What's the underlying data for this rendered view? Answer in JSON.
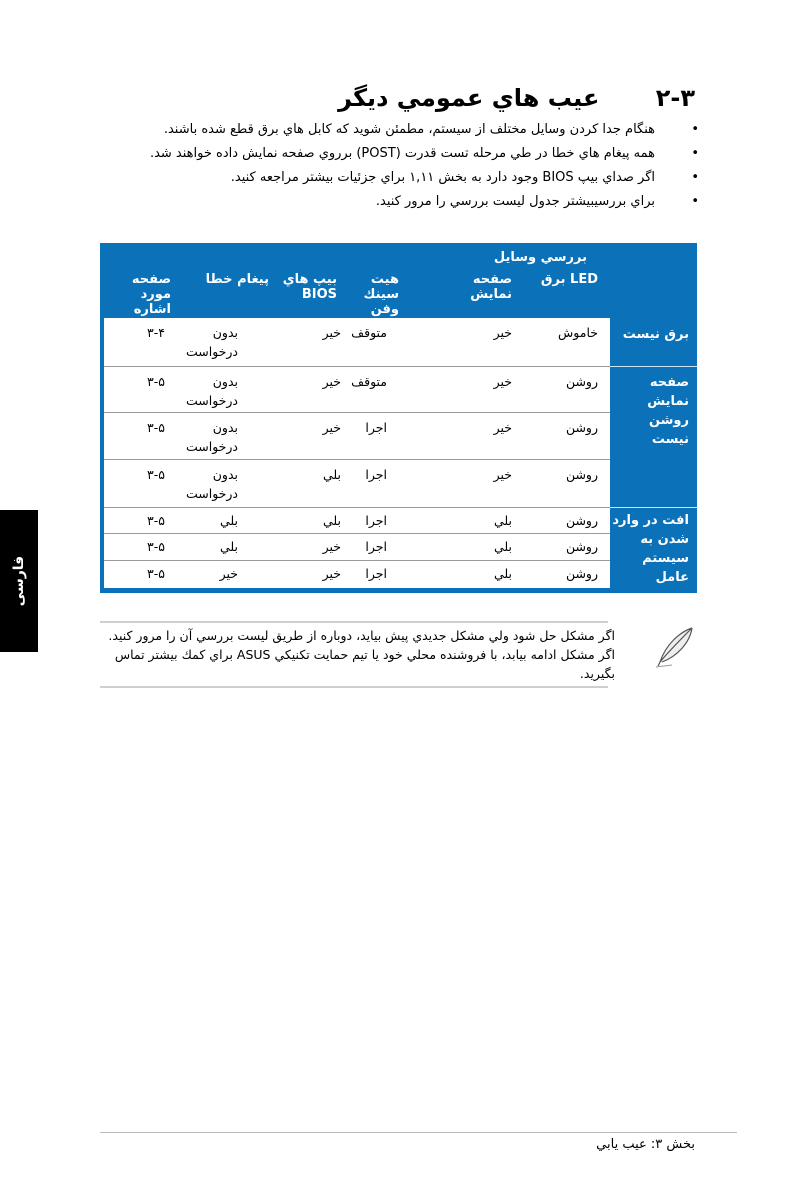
{
  "section": {
    "number": "۲-۳",
    "title": "عيب هاي عمومي ديگر"
  },
  "bullets": [
    "هنگام جدا كردن وسايل مختلف از سيستم، مطمئن شويد كه كابل هاي برق قطع شده باشند.",
    "همه پيغام هاي خطا در طي مرحله تست قدرت (POST) برروي صفحه نمايش داده خواهند شد.",
    "اگر صداي بيپ BIOS وجود دارد به بخش ۱,۱۱ براي جزئيات بيشتر مراجعه كنيد.",
    "براي بررسيبيشتر جدول ليست بررسي را مرور كنيد."
  ],
  "table": {
    "group_header": "بررسي وسايل",
    "headers": [
      "LED برق",
      "صفحه نمايش",
      "هيت سينك وفن",
      "بيپ هاي BIOS",
      "پيغام خطا",
      "صفحه مورد اشاره"
    ],
    "groups": [
      {
        "label": "برق نيست"
      },
      {
        "label": "صفحه نمايش روشن نيست"
      },
      {
        "label": "افت در وارد شدن به سيستم عامل"
      }
    ],
    "rows": [
      [
        "خاموش",
        "خير",
        "متوقف",
        "خير",
        "بدون درخواست",
        "۳-۴"
      ],
      [
        "روشن",
        "خير",
        "متوقف",
        "خير",
        "بدون درخواست",
        "۳-۵"
      ],
      [
        "روشن",
        "خير",
        "اجرا",
        "خير",
        "بدون درخواست",
        "۳-۵"
      ],
      [
        "روشن",
        "خير",
        "اجرا",
        "بلي",
        "بدون درخواست",
        "۳-۵"
      ],
      [
        "روشن",
        "بلي",
        "اجرا",
        "بلي",
        "بلي",
        "۳-۵"
      ],
      [
        "روشن",
        "بلي",
        "اجرا",
        "خير",
        "بلي",
        "۳-۵"
      ],
      [
        "روشن",
        "بلي",
        "اجرا",
        "خير",
        "خير",
        "۳-۵"
      ]
    ],
    "color": "#0b72b9"
  },
  "note": {
    "text": "اگر مشكل حل شود ولي مشكل جديدي پيش بيايد، دوباره از طريق ليست بررسي آن را مرور كنيد. اگر مشكل ادامه بيابد، با فروشنده محلي خود يا تيم حمايت تكنيكي ASUS براي كمك بيشتر تماس بگيريد.",
    "icon": "feather-icon"
  },
  "side_tab": "فارسی",
  "footer": "بخش ۳: عيب يابي"
}
